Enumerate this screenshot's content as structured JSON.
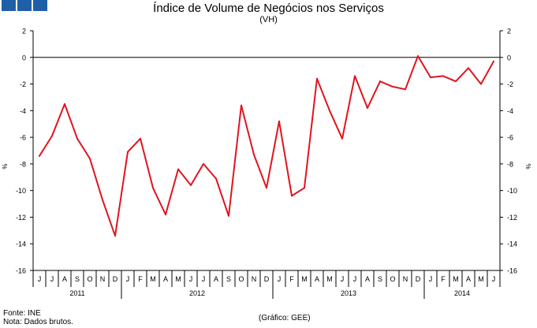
{
  "header": {
    "logo_colors": [
      "#1f5fa8",
      "#1f5fa8",
      "#1f5fa8"
    ]
  },
  "chart_data": {
    "type": "line",
    "title": "Índice de Volume de Negócios nos Serviços",
    "subtitle": "(VH)",
    "ylabel_left": "%",
    "ylabel_right": "%",
    "ylim": [
      -16,
      2
    ],
    "yticks": [
      2,
      0,
      -2,
      -4,
      -6,
      -8,
      -10,
      -12,
      -14,
      -16
    ],
    "grid": false,
    "line_color": "#e0141e",
    "categories": [
      "J",
      "J",
      "A",
      "S",
      "O",
      "N",
      "D",
      "J",
      "F",
      "M",
      "A",
      "M",
      "J",
      "J",
      "A",
      "S",
      "O",
      "N",
      "D",
      "J",
      "F",
      "M",
      "A",
      "M",
      "J",
      "J",
      "A",
      "S",
      "O",
      "N",
      "D",
      "J",
      "F",
      "M",
      "A",
      "M",
      "J"
    ],
    "years": [
      {
        "label": "2011",
        "start": 0,
        "count": 7
      },
      {
        "label": "2012",
        "start": 7,
        "count": 12
      },
      {
        "label": "2013",
        "start": 19,
        "count": 12
      },
      {
        "label": "2014",
        "start": 31,
        "count": 6
      }
    ],
    "series": [
      {
        "name": "VH",
        "values": [
          -7.4,
          -5.9,
          -3.5,
          -6.1,
          -7.6,
          -10.7,
          -13.4,
          -7.1,
          -6.1,
          -9.8,
          -11.8,
          -8.4,
          -9.6,
          -8.0,
          -9.1,
          -11.9,
          -3.6,
          -7.3,
          -9.8,
          -4.8,
          -10.4,
          -9.8,
          -1.6,
          -4.0,
          -6.1,
          -1.4,
          -3.8,
          -1.8,
          -2.2,
          -2.4,
          0.1,
          -1.5,
          -1.4,
          -1.8,
          -0.8,
          -2.0,
          -0.3
        ]
      }
    ]
  },
  "footer": {
    "source": "Fonte: INE",
    "note": "Nota: Dados brutos.",
    "credit": "(Gráfico: GEE)"
  }
}
